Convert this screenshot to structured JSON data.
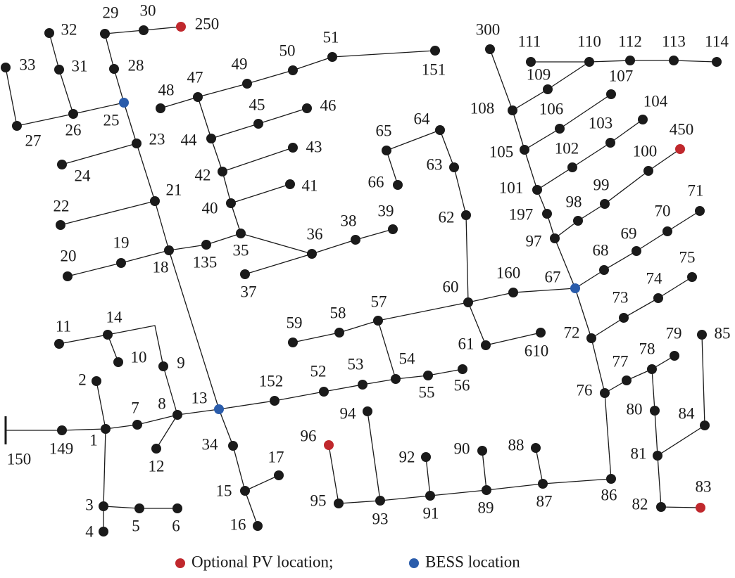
{
  "nodes": [
    "1",
    "2",
    "3",
    "4",
    "5",
    "6",
    "7",
    "8",
    "9",
    "10",
    "11",
    "12",
    "13",
    "14",
    "15",
    "16",
    "17",
    "18",
    "19",
    "20",
    "21",
    "22",
    "23",
    "24",
    "25",
    "26",
    "27",
    "28",
    "29",
    "30",
    "31",
    "32",
    "33",
    "34",
    "35",
    "36",
    "37",
    "38",
    "39",
    "40",
    "41",
    "42",
    "43",
    "44",
    "45",
    "46",
    "47",
    "48",
    "49",
    "50",
    "51",
    "52",
    "53",
    "54",
    "55",
    "56",
    "57",
    "58",
    "59",
    "60",
    "61",
    "62",
    "63",
    "64",
    "65",
    "66",
    "67",
    "68",
    "69",
    "70",
    "71",
    "72",
    "73",
    "74",
    "75",
    "76",
    "77",
    "78",
    "79",
    "80",
    "81",
    "82",
    "83",
    "84",
    "85",
    "86",
    "87",
    "88",
    "89",
    "90",
    "91",
    "92",
    "93",
    "94",
    "95",
    "96",
    "97",
    "98",
    "99",
    "100",
    "101",
    "102",
    "103",
    "104",
    "105",
    "106",
    "107",
    "108",
    "109",
    "110",
    "111",
    "112",
    "113",
    "114",
    "135",
    "149",
    "150",
    "151",
    "152",
    "160",
    "197",
    "250",
    "300",
    "450",
    "610"
  ],
  "legend": {
    "pv": "Optional PV location;",
    "bess": "BESS location"
  }
}
